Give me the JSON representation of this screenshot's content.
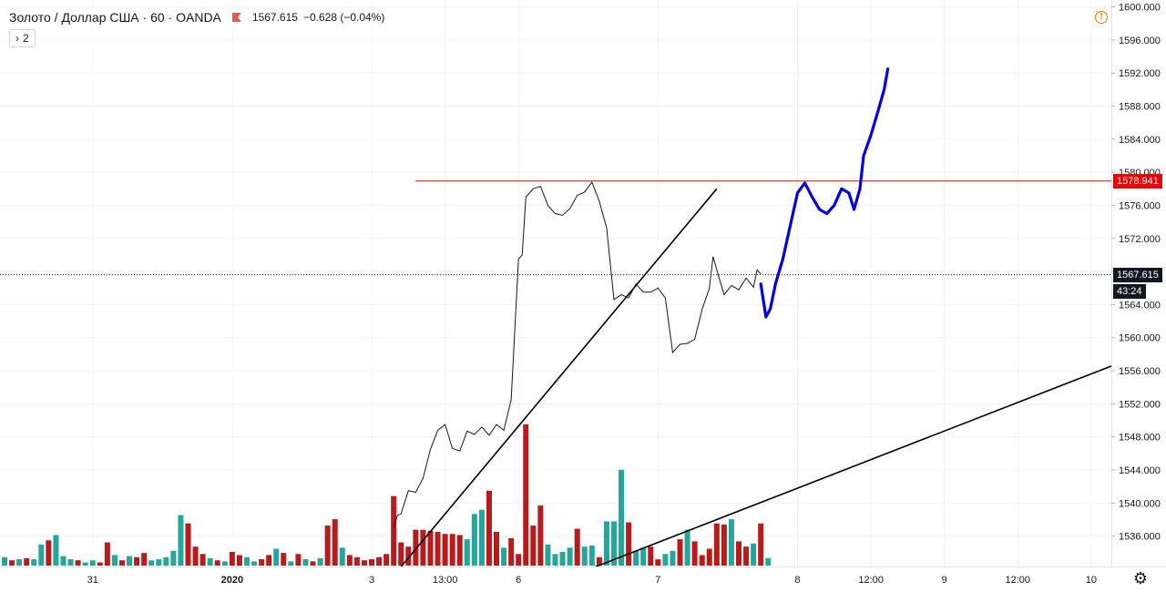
{
  "header": {
    "symbol": "Золото / Доллар США · 60 · OANDA",
    "price": "1567.615",
    "change": "−0.628 (−0.04%)"
  },
  "indicator_toggle": {
    "arrow": "›",
    "count": "2"
  },
  "labels": {
    "alert_level": "1578.941",
    "current_price": "1567.615",
    "countdown": "43:24"
  },
  "colors": {
    "up": "#26a69a",
    "down": "#b71c1c",
    "drawing": "#0000dd",
    "alert": "#ef0000",
    "price_line": "#131722",
    "trendline": "#000000"
  },
  "chart_data": {
    "type": "line",
    "series_name": "",
    "x_labels": [
      {
        "label": "31",
        "t": 12
      },
      {
        "label": "2020",
        "t": 31
      },
      {
        "label": "3",
        "t": 50
      },
      {
        "label": "13:00",
        "t": 60
      },
      {
        "label": "6",
        "t": 70
      },
      {
        "label": "7",
        "t": 89
      },
      {
        "label": "8",
        "t": 108
      },
      {
        "label": "12:00",
        "t": 118
      },
      {
        "label": "9",
        "t": 128
      },
      {
        "label": "12:00",
        "t": 138
      },
      {
        "label": "10",
        "t": 148
      }
    ],
    "y_ticks": [
      1536,
      1540,
      1544,
      1548,
      1552,
      1556,
      1560,
      1564,
      1568,
      1572,
      1576,
      1580,
      1584,
      1588,
      1592,
      1596,
      1600
    ],
    "ylim": [
      1532.3,
      1600.5
    ],
    "price": [
      [
        53,
        1537
      ],
      [
        53.5,
        1538.5
      ],
      [
        54,
        1538.7
      ],
      [
        55,
        1541.5
      ],
      [
        56,
        1541.3
      ],
      [
        57,
        1543
      ],
      [
        58,
        1546.5
      ],
      [
        59,
        1548.8
      ],
      [
        60,
        1549.5
      ],
      [
        61,
        1546.6
      ],
      [
        62,
        1546.3
      ],
      [
        63,
        1548.7
      ],
      [
        64,
        1548.3
      ],
      [
        65,
        1549.2
      ],
      [
        66,
        1548.2
      ],
      [
        67,
        1549.5
      ],
      [
        68,
        1548.8
      ],
      [
        69,
        1552.5
      ],
      [
        70,
        1569.5
      ],
      [
        70.5,
        1570
      ],
      [
        71,
        1577
      ],
      [
        72,
        1578
      ],
      [
        73,
        1578.3
      ],
      [
        74,
        1576
      ],
      [
        75,
        1575
      ],
      [
        76,
        1574.8
      ],
      [
        77,
        1575.6
      ],
      [
        78,
        1577.2
      ],
      [
        79,
        1577.6
      ],
      [
        80,
        1578.8
      ],
      [
        81,
        1576.5
      ],
      [
        82,
        1573.3
      ],
      [
        83,
        1564.6
      ],
      [
        84,
        1565.2
      ],
      [
        85,
        1564.8
      ],
      [
        86,
        1566.5
      ],
      [
        87,
        1565.5
      ],
      [
        88,
        1565.5
      ],
      [
        89,
        1566
      ],
      [
        90,
        1564.8
      ],
      [
        91,
        1558.2
      ],
      [
        92,
        1559.2
      ],
      [
        93,
        1559.3
      ],
      [
        94,
        1559.8
      ],
      [
        95,
        1563.4
      ],
      [
        96,
        1566
      ],
      [
        96.5,
        1569.8
      ],
      [
        97,
        1568.2
      ],
      [
        98,
        1565.2
      ],
      [
        99,
        1566.3
      ],
      [
        100,
        1565.8
      ],
      [
        101,
        1567.2
      ],
      [
        102,
        1566.1
      ],
      [
        102.5,
        1568.2
      ],
      [
        103,
        1567.7
      ]
    ],
    "volume": [
      {
        "t": 0,
        "v": 8,
        "dir": "up"
      },
      {
        "t": 1,
        "v": 5,
        "dir": "down"
      },
      {
        "t": 2,
        "v": 6,
        "dir": "up"
      },
      {
        "t": 3,
        "v": 7,
        "dir": "down"
      },
      {
        "t": 4,
        "v": 6,
        "dir": "up"
      },
      {
        "t": 5,
        "v": 20,
        "dir": "up"
      },
      {
        "t": 6,
        "v": 24,
        "dir": "down"
      },
      {
        "t": 7,
        "v": 29,
        "dir": "up"
      },
      {
        "t": 8,
        "v": 9,
        "dir": "up"
      },
      {
        "t": 9,
        "v": 6,
        "dir": "up"
      },
      {
        "t": 10,
        "v": 5,
        "dir": "down"
      },
      {
        "t": 11,
        "v": 3,
        "dir": "up"
      },
      {
        "t": 12,
        "v": 5,
        "dir": "up"
      },
      {
        "t": 13,
        "v": 3,
        "dir": "down"
      },
      {
        "t": 14,
        "v": 22,
        "dir": "down"
      },
      {
        "t": 15,
        "v": 10,
        "dir": "up"
      },
      {
        "t": 16,
        "v": 5,
        "dir": "down"
      },
      {
        "t": 17,
        "v": 9,
        "dir": "up"
      },
      {
        "t": 18,
        "v": 8,
        "dir": "down"
      },
      {
        "t": 19,
        "v": 12,
        "dir": "down"
      },
      {
        "t": 20,
        "v": 5,
        "dir": "up"
      },
      {
        "t": 21,
        "v": 6,
        "dir": "up"
      },
      {
        "t": 22,
        "v": 8,
        "dir": "up"
      },
      {
        "t": 23,
        "v": 14,
        "dir": "up"
      },
      {
        "t": 24,
        "v": 48,
        "dir": "up"
      },
      {
        "t": 25,
        "v": 40,
        "dir": "down"
      },
      {
        "t": 26,
        "v": 18,
        "dir": "down"
      },
      {
        "t": 27,
        "v": 11,
        "dir": "down"
      },
      {
        "t": 28,
        "v": 7,
        "dir": "up"
      },
      {
        "t": 29,
        "v": 5,
        "dir": "down"
      },
      {
        "t": 30,
        "v": 4,
        "dir": "up"
      },
      {
        "t": 31,
        "v": 13,
        "dir": "down"
      },
      {
        "t": 32,
        "v": 10,
        "dir": "down"
      },
      {
        "t": 33,
        "v": 8,
        "dir": "up"
      },
      {
        "t": 34,
        "v": 4,
        "dir": "up"
      },
      {
        "t": 35,
        "v": 6,
        "dir": "down"
      },
      {
        "t": 36,
        "v": 10,
        "dir": "down"
      },
      {
        "t": 37,
        "v": 16,
        "dir": "up"
      },
      {
        "t": 38,
        "v": 12,
        "dir": "down"
      },
      {
        "t": 39,
        "v": 4,
        "dir": "up"
      },
      {
        "t": 40,
        "v": 11,
        "dir": "down"
      },
      {
        "t": 41,
        "v": 6,
        "dir": "up"
      },
      {
        "t": 42,
        "v": 4,
        "dir": "down"
      },
      {
        "t": 43,
        "v": 7,
        "dir": "up"
      },
      {
        "t": 44,
        "v": 38,
        "dir": "down"
      },
      {
        "t": 45,
        "v": 44,
        "dir": "down"
      },
      {
        "t": 46,
        "v": 17,
        "dir": "up"
      },
      {
        "t": 47,
        "v": 10,
        "dir": "down"
      },
      {
        "t": 48,
        "v": 8,
        "dir": "down"
      },
      {
        "t": 49,
        "v": 5,
        "dir": "down"
      },
      {
        "t": 50,
        "v": 6,
        "dir": "down"
      },
      {
        "t": 51,
        "v": 8,
        "dir": "down"
      },
      {
        "t": 52,
        "v": 11,
        "dir": "down"
      },
      {
        "t": 53,
        "v": 66,
        "dir": "down"
      },
      {
        "t": 54,
        "v": 22,
        "dir": "down"
      },
      {
        "t": 55,
        "v": 18,
        "dir": "down"
      },
      {
        "t": 56,
        "v": 34,
        "dir": "down"
      },
      {
        "t": 57,
        "v": 34,
        "dir": "down"
      },
      {
        "t": 58,
        "v": 33,
        "dir": "down"
      },
      {
        "t": 59,
        "v": 32,
        "dir": "down"
      },
      {
        "t": 60,
        "v": 30,
        "dir": "down"
      },
      {
        "t": 61,
        "v": 30,
        "dir": "down"
      },
      {
        "t": 62,
        "v": 29,
        "dir": "down"
      },
      {
        "t": 63,
        "v": 25,
        "dir": "up"
      },
      {
        "t": 64,
        "v": 49,
        "dir": "up"
      },
      {
        "t": 65,
        "v": 53,
        "dir": "up"
      },
      {
        "t": 66,
        "v": 71,
        "dir": "down"
      },
      {
        "t": 67,
        "v": 32,
        "dir": "down"
      },
      {
        "t": 68,
        "v": 17,
        "dir": "up"
      },
      {
        "t": 69,
        "v": 26,
        "dir": "down"
      },
      {
        "t": 70,
        "v": 11,
        "dir": "down"
      },
      {
        "t": 71,
        "v": 134,
        "dir": "down"
      },
      {
        "t": 72,
        "v": 38,
        "dir": "down"
      },
      {
        "t": 73,
        "v": 57,
        "dir": "down"
      },
      {
        "t": 74,
        "v": 20,
        "dir": "up"
      },
      {
        "t": 75,
        "v": 11,
        "dir": "up"
      },
      {
        "t": 76,
        "v": 13,
        "dir": "up"
      },
      {
        "t": 77,
        "v": 17,
        "dir": "up"
      },
      {
        "t": 78,
        "v": 35,
        "dir": "down"
      },
      {
        "t": 79,
        "v": 18,
        "dir": "up"
      },
      {
        "t": 80,
        "v": 19,
        "dir": "up"
      },
      {
        "t": 81,
        "v": 8,
        "dir": "down"
      },
      {
        "t": 82,
        "v": 42,
        "dir": "up"
      },
      {
        "t": 83,
        "v": 42,
        "dir": "up"
      },
      {
        "t": 84,
        "v": 91,
        "dir": "up"
      },
      {
        "t": 85,
        "v": 41,
        "dir": "down"
      },
      {
        "t": 86,
        "v": 14,
        "dir": "up"
      },
      {
        "t": 87,
        "v": 17,
        "dir": "up"
      },
      {
        "t": 88,
        "v": 18,
        "dir": "down"
      },
      {
        "t": 89,
        "v": 6,
        "dir": "down"
      },
      {
        "t": 90,
        "v": 11,
        "dir": "up"
      },
      {
        "t": 91,
        "v": 14,
        "dir": "up"
      },
      {
        "t": 92,
        "v": 25,
        "dir": "down"
      },
      {
        "t": 93,
        "v": 34,
        "dir": "up"
      },
      {
        "t": 94,
        "v": 23,
        "dir": "down"
      },
      {
        "t": 95,
        "v": 10,
        "dir": "down"
      },
      {
        "t": 96,
        "v": 16,
        "dir": "down"
      },
      {
        "t": 97,
        "v": 40,
        "dir": "down"
      },
      {
        "t": 98,
        "v": 39,
        "dir": "down"
      },
      {
        "t": 99,
        "v": 44,
        "dir": "up"
      },
      {
        "t": 100,
        "v": 23,
        "dir": "down"
      },
      {
        "t": 101,
        "v": 18,
        "dir": "down"
      },
      {
        "t": 102,
        "v": 21,
        "dir": "up"
      },
      {
        "t": 103,
        "v": 40,
        "dir": "down"
      },
      {
        "t": 104,
        "v": 7,
        "dir": "up"
      }
    ],
    "vol_max": 134,
    "horizontal_alert": {
      "price": 1578.941,
      "t_start": 56
    },
    "current_price_line": 1567.615,
    "trendlines": [
      {
        "t1": 54,
        "p1": 1532.3,
        "t2": 97,
        "p2": 1578
      },
      {
        "t1": 80.5,
        "p1": 1532.3,
        "t2": 152,
        "p2": 1557
      }
    ],
    "forecast_path": [
      [
        103,
        1566.5
      ],
      [
        103.7,
        1562.5
      ],
      [
        104.3,
        1563.5
      ],
      [
        105,
        1566.5
      ],
      [
        106,
        1569.5
      ],
      [
        107,
        1573.5
      ],
      [
        108,
        1577.5
      ],
      [
        109,
        1578.7
      ],
      [
        110,
        1577
      ],
      [
        111,
        1575.5
      ],
      [
        112,
        1575
      ],
      [
        113,
        1576
      ],
      [
        114,
        1578
      ],
      [
        115,
        1577.5
      ],
      [
        115.7,
        1575.5
      ],
      [
        116.5,
        1578
      ],
      [
        117,
        1582
      ],
      [
        118,
        1584.5
      ],
      [
        119,
        1587.5
      ],
      [
        119.8,
        1590
      ],
      [
        120.3,
        1592.5
      ]
    ]
  }
}
